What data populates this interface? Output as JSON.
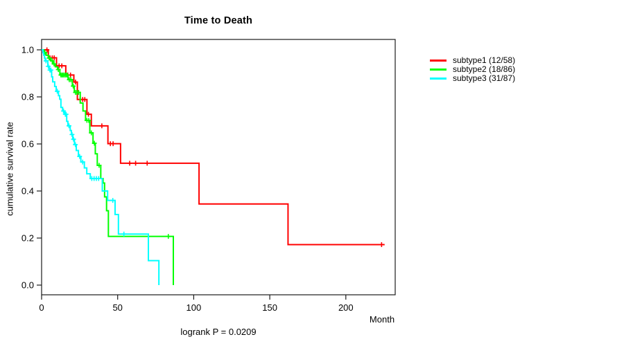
{
  "chart_data": {
    "type": "line",
    "variant": "kaplan-meier-step-curves",
    "title": "Time to Death",
    "xlabel": "Month",
    "ylabel": "cumulative survival rate",
    "annotation": "logrank P = 0.0209",
    "x_ticks": [
      0,
      50,
      100,
      150,
      200
    ],
    "y_ticks": [
      1.0,
      0.8,
      0.6,
      0.4,
      0.2,
      0.0
    ],
    "xlim": [
      0,
      233
    ],
    "ylim": [
      0.0,
      1.0
    ],
    "grid": false,
    "legend_position": "right-outside",
    "axis_color": "#1a1a1a",
    "series": [
      {
        "name": "subtype1 (12/58)",
        "deaths_total": "12/58",
        "color": "#ff0000",
        "steps": [
          [
            0,
            1.0
          ],
          [
            4.4,
            0.966
          ],
          [
            9.8,
            0.932
          ],
          [
            15.9,
            0.893
          ],
          [
            21.2,
            0.863
          ],
          [
            23.5,
            0.789
          ],
          [
            29.8,
            0.726
          ],
          [
            32.7,
            0.677
          ],
          [
            43.6,
            0.601
          ],
          [
            51.9,
            0.518
          ],
          [
            103.5,
            0.345
          ],
          [
            162,
            0.172
          ]
        ],
        "censors": [
          [
            3.5,
            1.0
          ],
          [
            5.5,
            0.966
          ],
          [
            7,
            0.966
          ],
          [
            8.3,
            0.966
          ],
          [
            11.5,
            0.932
          ],
          [
            13.3,
            0.932
          ],
          [
            17.2,
            0.893
          ],
          [
            19,
            0.893
          ],
          [
            22.3,
            0.863
          ],
          [
            25.3,
            0.789
          ],
          [
            27,
            0.789
          ],
          [
            28.4,
            0.789
          ],
          [
            30.8,
            0.726
          ],
          [
            39.6,
            0.677
          ],
          [
            45.2,
            0.601
          ],
          [
            47,
            0.601
          ],
          [
            57.9,
            0.518
          ],
          [
            61.8,
            0.518
          ],
          [
            69.4,
            0.518
          ],
          [
            223.5,
            0.172
          ]
        ],
        "end_month": 225.5
      },
      {
        "name": "subtype2 (18/86)",
        "deaths_total": "18/86",
        "color": "#00ff00",
        "steps": [
          [
            0,
            1.0
          ],
          [
            1.5,
            0.988
          ],
          [
            3,
            0.977
          ],
          [
            4.5,
            0.965
          ],
          [
            6,
            0.953
          ],
          [
            7.5,
            0.94
          ],
          [
            9,
            0.928
          ],
          [
            10.5,
            0.916
          ],
          [
            12,
            0.893
          ],
          [
            17.4,
            0.873
          ],
          [
            20.2,
            0.846
          ],
          [
            21.5,
            0.819
          ],
          [
            25.4,
            0.774
          ],
          [
            27.2,
            0.74
          ],
          [
            28.9,
            0.7
          ],
          [
            31.7,
            0.647
          ],
          [
            33.8,
            0.603
          ],
          [
            35.3,
            0.558
          ],
          [
            36.6,
            0.509
          ],
          [
            38.9,
            0.453
          ],
          [
            40.4,
            0.434
          ],
          [
            41.4,
            0.375
          ],
          [
            42.7,
            0.316
          ],
          [
            43.9,
            0.207
          ],
          [
            86.6,
            0.0
          ]
        ],
        "censors": [
          [
            2.2,
            0.988
          ],
          [
            5,
            0.965
          ],
          [
            7,
            0.953
          ],
          [
            8.2,
            0.94
          ],
          [
            11,
            0.916
          ],
          [
            12.7,
            0.893
          ],
          [
            13.5,
            0.893
          ],
          [
            14.3,
            0.893
          ],
          [
            15.2,
            0.893
          ],
          [
            16,
            0.893
          ],
          [
            16.8,
            0.893
          ],
          [
            18.2,
            0.873
          ],
          [
            19.2,
            0.873
          ],
          [
            20.8,
            0.846
          ],
          [
            22.3,
            0.819
          ],
          [
            23.2,
            0.819
          ],
          [
            24.3,
            0.819
          ],
          [
            29.8,
            0.7
          ],
          [
            31,
            0.7
          ],
          [
            32.7,
            0.647
          ],
          [
            34.7,
            0.603
          ],
          [
            37.8,
            0.509
          ],
          [
            83.3,
            0.207
          ]
        ],
        "end_month": 86.6
      },
      {
        "name": "subtype3 (31/87)",
        "deaths_total": "31/87",
        "color": "#00ffff",
        "steps": [
          [
            0,
            1.0
          ],
          [
            0.9,
            0.988
          ],
          [
            1.4,
            0.977
          ],
          [
            1.9,
            0.965
          ],
          [
            2.4,
            0.953
          ],
          [
            4.1,
            0.93
          ],
          [
            5,
            0.914
          ],
          [
            6.6,
            0.885
          ],
          [
            7.3,
            0.864
          ],
          [
            8.6,
            0.844
          ],
          [
            9.6,
            0.824
          ],
          [
            11.1,
            0.805
          ],
          [
            11.9,
            0.79
          ],
          [
            12.7,
            0.755
          ],
          [
            13.8,
            0.74
          ],
          [
            15.1,
            0.726
          ],
          [
            16.5,
            0.696
          ],
          [
            17.3,
            0.677
          ],
          [
            18.8,
            0.657
          ],
          [
            19.6,
            0.64
          ],
          [
            20.5,
            0.62
          ],
          [
            21.6,
            0.597
          ],
          [
            22.8,
            0.572
          ],
          [
            24.2,
            0.547
          ],
          [
            25.8,
            0.523
          ],
          [
            28.1,
            0.498
          ],
          [
            29.7,
            0.473
          ],
          [
            32,
            0.453
          ],
          [
            39.9,
            0.4
          ],
          [
            43.4,
            0.36
          ],
          [
            48.3,
            0.3
          ],
          [
            50.5,
            0.217
          ],
          [
            70.2,
            0.104
          ],
          [
            77.1,
            0.0
          ]
        ],
        "censors": [
          [
            2.9,
            0.953
          ],
          [
            4.4,
            0.93
          ],
          [
            5.5,
            0.914
          ],
          [
            6.1,
            0.914
          ],
          [
            10.3,
            0.824
          ],
          [
            14.4,
            0.74
          ],
          [
            15.6,
            0.726
          ],
          [
            16.1,
            0.726
          ],
          [
            18,
            0.677
          ],
          [
            20,
            0.64
          ],
          [
            21,
            0.62
          ],
          [
            22.2,
            0.597
          ],
          [
            25,
            0.547
          ],
          [
            27,
            0.523
          ],
          [
            33,
            0.453
          ],
          [
            34.5,
            0.453
          ],
          [
            36,
            0.453
          ],
          [
            37.5,
            0.453
          ],
          [
            46.8,
            0.36
          ],
          [
            54.1,
            0.217
          ]
        ],
        "end_month": 77.1
      }
    ]
  }
}
